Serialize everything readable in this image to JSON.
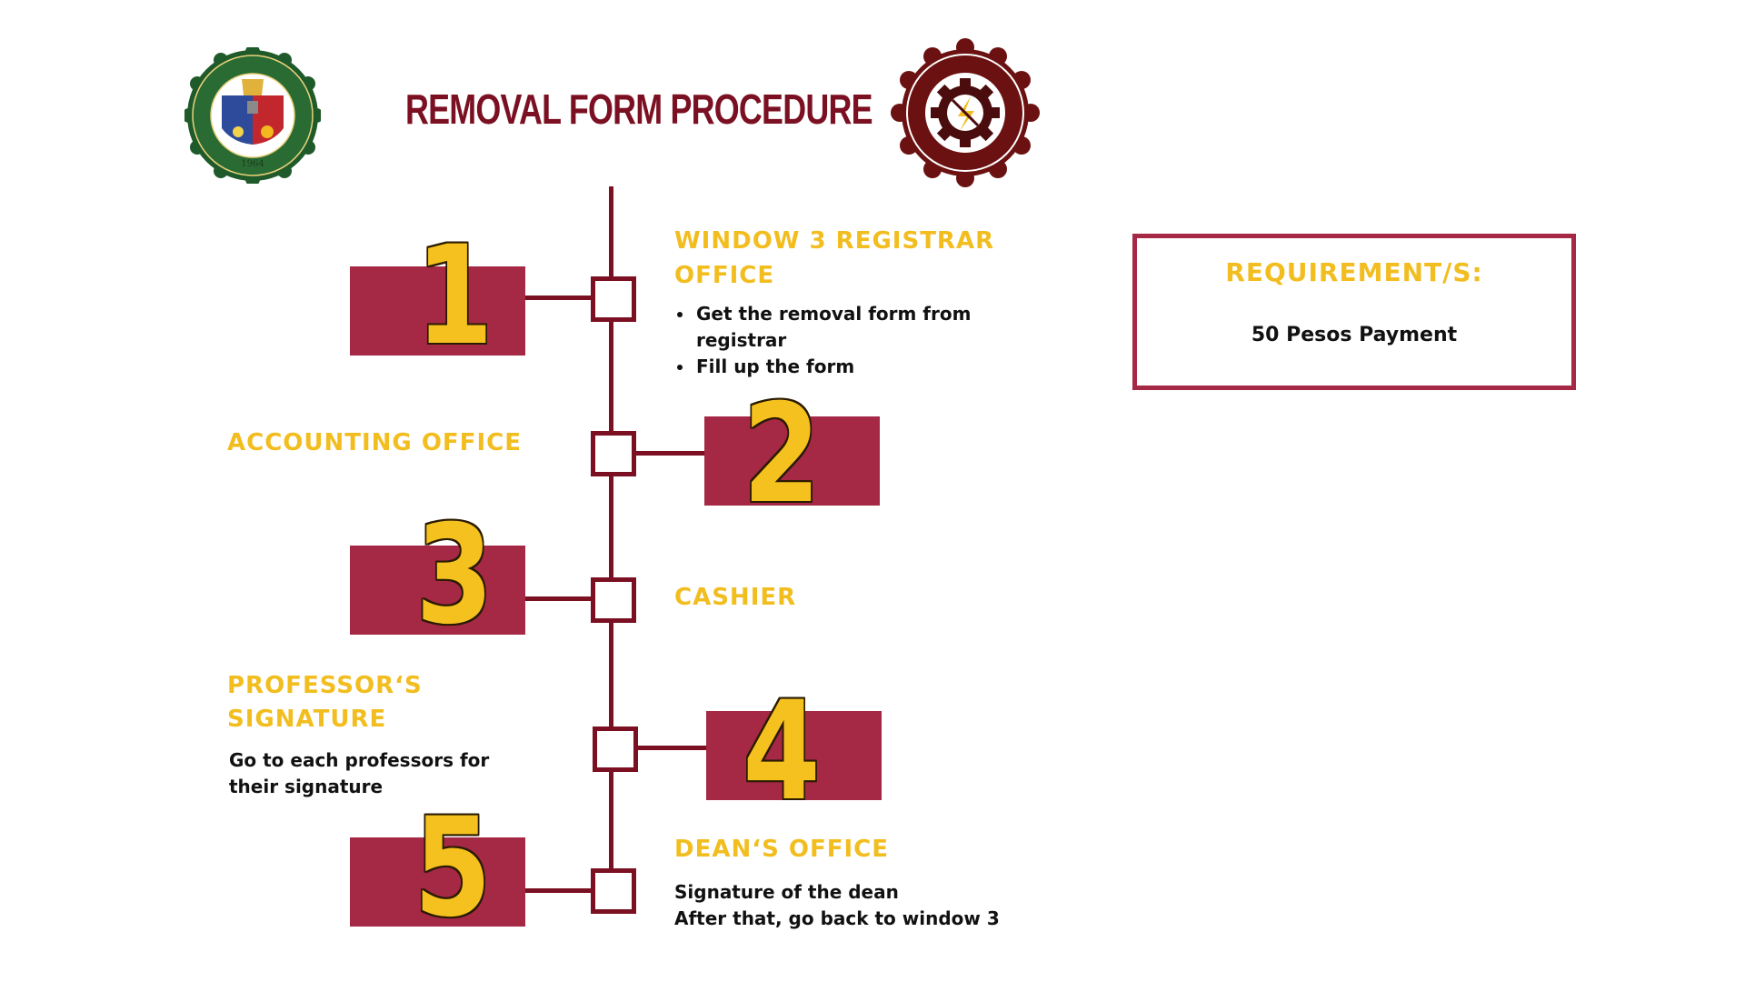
{
  "title": "REMOVAL FORM PROCEDURE",
  "logos": {
    "left": {
      "name": "SOUTHERN LUZON STATE UNIVERSITY",
      "year": "1964"
    },
    "right": {
      "name": "COLLEGE OF ENGINEERING",
      "abbr": "SLSU"
    }
  },
  "steps": [
    {
      "number": "1",
      "heading_line1": "WINDOW 3 REGISTRAR",
      "heading_line2": "OFFICE",
      "bullets": [
        "Get the removal form from registrar",
        "Fill up the form"
      ]
    },
    {
      "number": "2",
      "heading": "ACCOUNTING OFFICE"
    },
    {
      "number": "3",
      "heading": "CASHIER"
    },
    {
      "number": "4",
      "heading_line1": "PROFESSOR‘S",
      "heading_line2": "SIGNATURE",
      "description": "Go to each professors for their signature"
    },
    {
      "number": "5",
      "heading": "DEAN‘S OFFICE",
      "line1": "Signature of the dean",
      "line2": "After that, go back to window 3"
    }
  ],
  "requirements": {
    "title": "REQUIREMENT/S:",
    "value": "50 Pesos Payment"
  },
  "colors": {
    "maroon": "#7b1022",
    "crimson": "#a52845",
    "gold": "#f2bd1f",
    "seal_green": "#1f5a2b"
  }
}
